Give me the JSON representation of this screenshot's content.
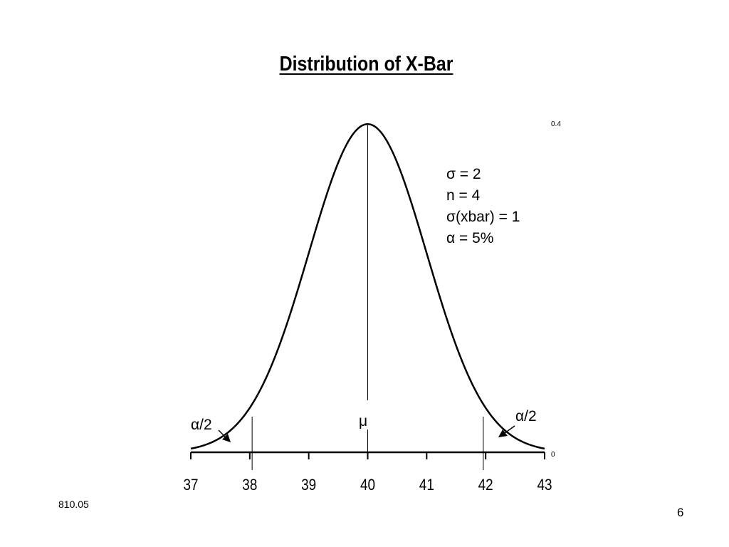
{
  "slide": {
    "title": "Distribution of X-Bar",
    "footer_code": "810.05",
    "page_number": "6",
    "params": [
      "σ = 2",
      "n = 4",
      "σ(xbar) = 1",
      "α = 5%"
    ]
  },
  "chart_data": {
    "type": "line",
    "title": "Distribution of X-Bar",
    "xlabel": "",
    "ylabel": "",
    "xlim": [
      37,
      43
    ],
    "ylim": [
      0,
      0.4
    ],
    "x_ticks": [
      "37",
      "38",
      "39",
      "40",
      "41",
      "42",
      "43"
    ],
    "y_ticks": [
      "0.4",
      "0"
    ],
    "series": [
      {
        "distribution": "normal",
        "mean": 40,
        "sd": 1,
        "x": [
          37,
          37.5,
          38,
          38.5,
          39,
          39.5,
          40,
          40.5,
          41,
          41.5,
          42,
          42.5,
          43
        ],
        "y": [
          0.0044,
          0.0175,
          0.054,
          0.1295,
          0.242,
          0.3521,
          0.3989,
          0.3521,
          0.242,
          0.1295,
          0.054,
          0.0175,
          0.0044
        ]
      }
    ],
    "reference_lines_x": [
      38.04,
      40,
      41.96
    ],
    "annotations": [
      {
        "text": "μ",
        "x": 40
      },
      {
        "text": "α/2",
        "side": "left tail"
      },
      {
        "text": "α/2",
        "side": "right tail"
      }
    ],
    "grid": false
  }
}
